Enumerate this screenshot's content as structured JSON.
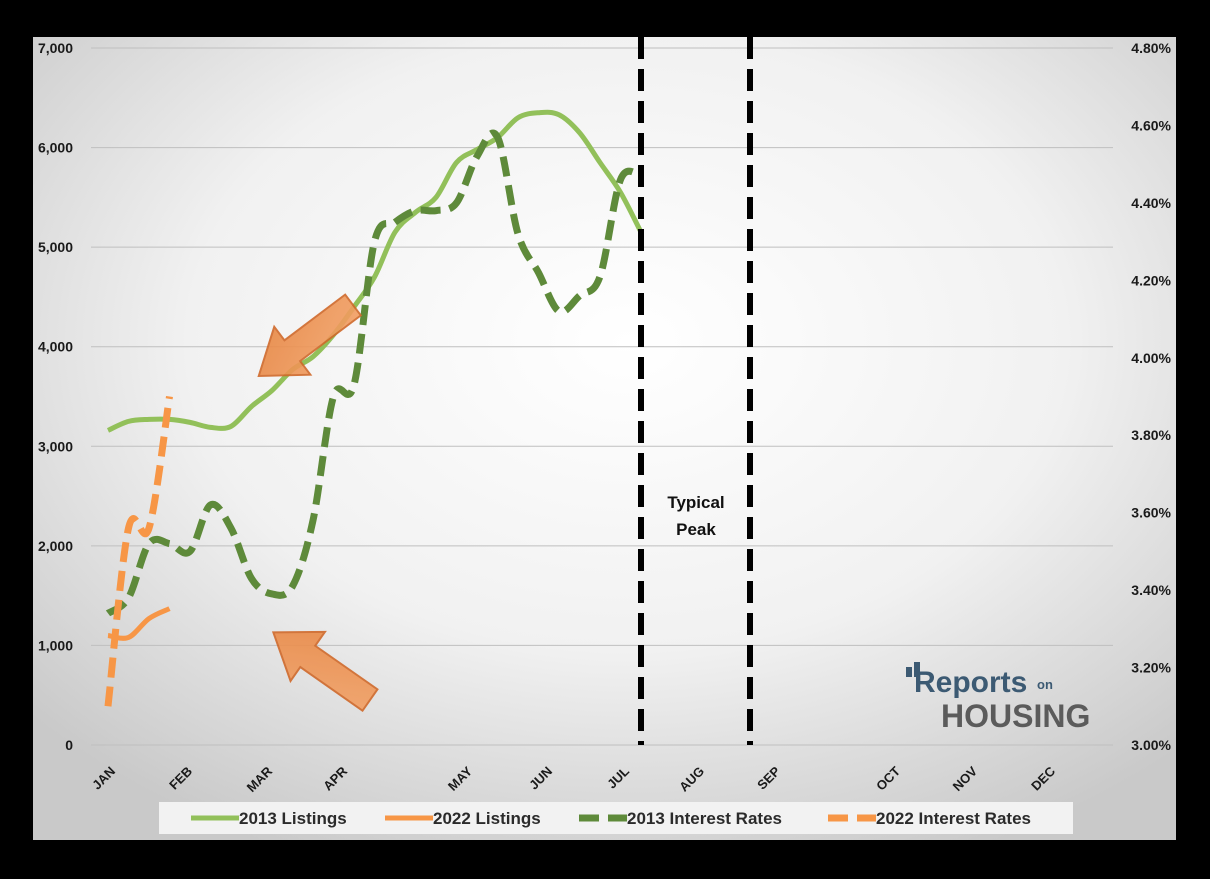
{
  "chart_data": {
    "type": "line",
    "title": "",
    "x_months": [
      "JAN",
      "FEB",
      "MAR",
      "APR",
      "MAY",
      "JUN",
      "JUL",
      "AUG",
      "SEP",
      "OCT",
      "NOV",
      "DEC"
    ],
    "y_left": {
      "min": 0,
      "max": 7000,
      "ticks": [
        "0",
        "1,000",
        "2,000",
        "3,000",
        "4,000",
        "5,000",
        "6,000",
        "7,000"
      ]
    },
    "y_right": {
      "min": 3.0,
      "max": 4.8,
      "ticks": [
        "3.00%",
        "3.20%",
        "3.40%",
        "3.60%",
        "3.80%",
        "4.00%",
        "4.20%",
        "4.40%",
        "4.60%",
        "4.80%"
      ]
    },
    "grid": true,
    "legend_position": "bottom",
    "series": [
      {
        "name": "2013 Listings",
        "axis": "left",
        "style": "solid",
        "color": "#92C05A",
        "points": [
          [
            0,
            3160
          ],
          [
            0.5,
            3250
          ],
          [
            1,
            3270
          ],
          [
            1.5,
            3270
          ],
          [
            2,
            3240
          ],
          [
            2.5,
            3190
          ],
          [
            3,
            3200
          ],
          [
            3.5,
            3400
          ],
          [
            4,
            3560
          ],
          [
            4.5,
            3770
          ],
          [
            5,
            3900
          ],
          [
            5.5,
            4120
          ],
          [
            6,
            4400
          ],
          [
            6.5,
            4700
          ],
          [
            7,
            5150
          ],
          [
            7.5,
            5350
          ],
          [
            8,
            5500
          ],
          [
            8.5,
            5850
          ],
          [
            9,
            5980
          ],
          [
            9.5,
            6100
          ],
          [
            10,
            6300
          ],
          [
            10.5,
            6350
          ],
          [
            11,
            6330
          ],
          [
            11.5,
            6150
          ],
          [
            12,
            5850
          ],
          [
            12.5,
            5550
          ],
          [
            13,
            5150
          ]
        ]
      },
      {
        "name": "2022 Listings",
        "axis": "left",
        "style": "solid",
        "color": "#F79646",
        "points": [
          [
            0,
            1100
          ],
          [
            0.5,
            1080
          ],
          [
            1,
            1270
          ],
          [
            1.5,
            1370
          ]
        ]
      },
      {
        "name": "2013 Interest Rates",
        "axis": "right",
        "style": "dashed",
        "color": "#5E8A3A",
        "points": [
          [
            0,
            3.34
          ],
          [
            0.5,
            3.38
          ],
          [
            1,
            3.52
          ],
          [
            1.5,
            3.52
          ],
          [
            2,
            3.5
          ],
          [
            2.5,
            3.62
          ],
          [
            3,
            3.56
          ],
          [
            3.5,
            3.43
          ],
          [
            4,
            3.39
          ],
          [
            4.5,
            3.41
          ],
          [
            5,
            3.58
          ],
          [
            5.5,
            3.9
          ],
          [
            6,
            3.93
          ],
          [
            6.5,
            4.3
          ],
          [
            7,
            4.35
          ],
          [
            7.5,
            4.38
          ],
          [
            8,
            4.38
          ],
          [
            8.5,
            4.4
          ],
          [
            9,
            4.52
          ],
          [
            9.5,
            4.57
          ],
          [
            10,
            4.32
          ],
          [
            10.5,
            4.22
          ],
          [
            11,
            4.12
          ],
          [
            11.5,
            4.16
          ],
          [
            12,
            4.21
          ],
          [
            12.5,
            4.46
          ],
          [
            13,
            4.47
          ]
        ]
      },
      {
        "name": "2022 Interest Rates",
        "axis": "right",
        "style": "dashed",
        "color": "#F79646",
        "points": [
          [
            0,
            3.1
          ],
          [
            0.5,
            3.56
          ],
          [
            1,
            3.56
          ],
          [
            1.5,
            3.9
          ]
        ]
      }
    ],
    "annotations": [
      {
        "text_lines": [
          "Typical",
          "Peak"
        ]
      }
    ]
  },
  "logo": {
    "line1": "Reports",
    "line1b": "on",
    "line2": "HOUSING"
  }
}
